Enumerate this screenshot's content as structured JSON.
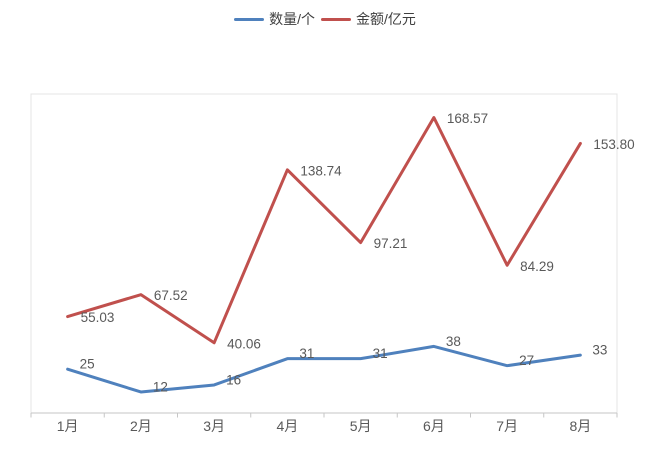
{
  "chart_data": {
    "type": "line",
    "title": "",
    "xlabel": "",
    "ylabel": "",
    "categories": [
      "1月",
      "2月",
      "3月",
      "4月",
      "5月",
      "6月",
      "7月",
      "8月"
    ],
    "series": [
      {
        "name": "数量/个",
        "color": "#4F81BD",
        "decimals": 0,
        "values": [
          25,
          12,
          16,
          31,
          31,
          38,
          27,
          33
        ]
      },
      {
        "name": "金额/亿元",
        "color": "#C0504D",
        "decimals": 2,
        "values": [
          55.03,
          67.52,
          40.06,
          138.74,
          97.21,
          168.57,
          84.29,
          153.8
        ]
      }
    ],
    "ylim": [
      0,
      182
    ],
    "grid": false,
    "data_labels": true,
    "legend_position": "top",
    "y_axis_labels_visible": false,
    "axis_color": "#C6C6C6",
    "plot_border_color": "#E4E4E4",
    "label_color": "#595959"
  }
}
